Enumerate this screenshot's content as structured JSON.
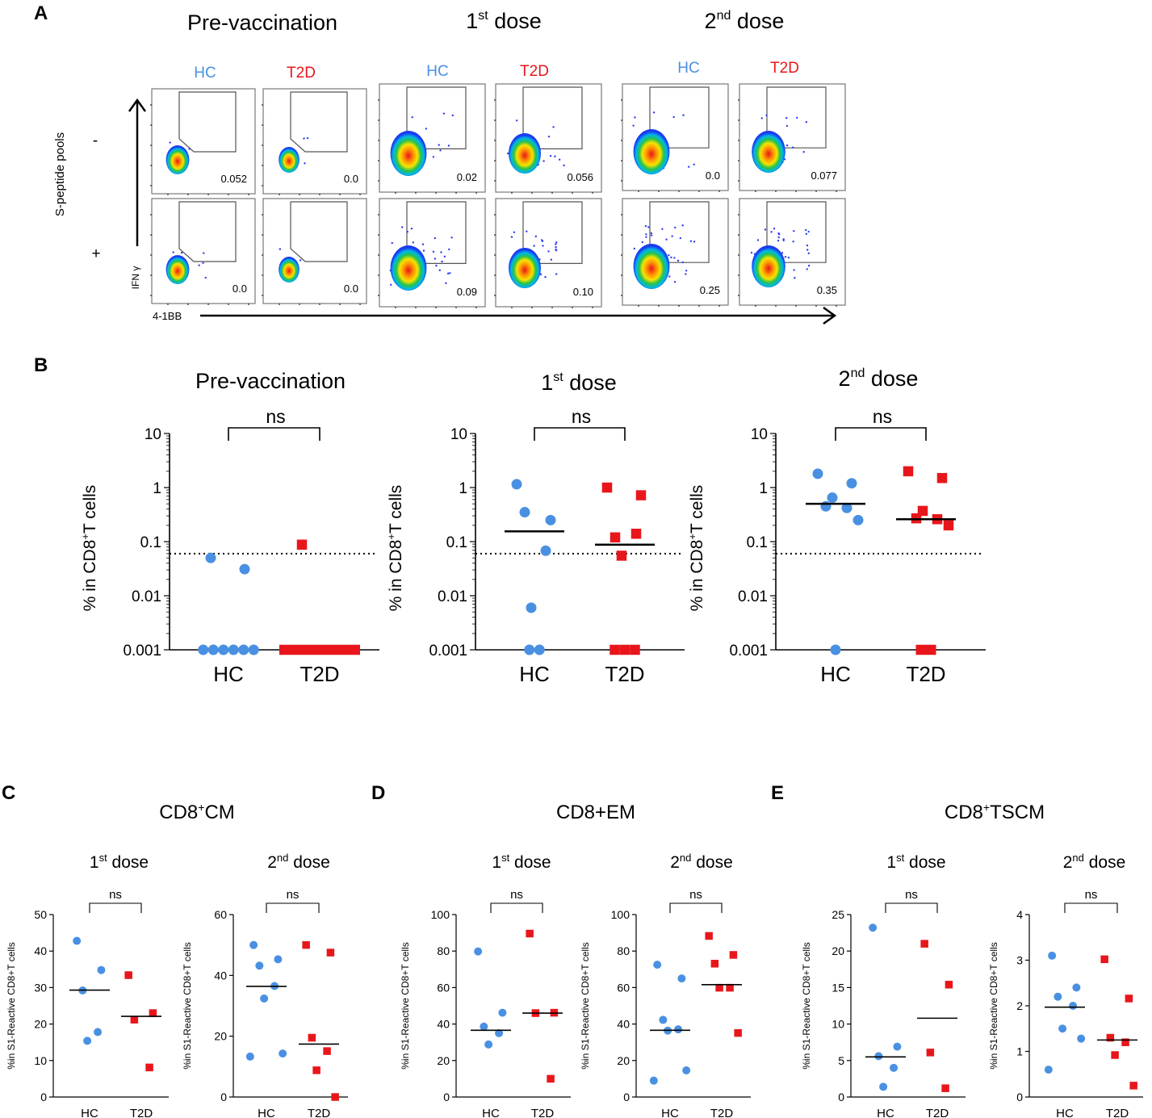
{
  "panel_letters": {
    "A": "A",
    "B": "B",
    "C": "C",
    "D": "D",
    "E": "E"
  },
  "colors": {
    "hc": "#4a90e2",
    "t2d": "#e8161b",
    "axis": "#000000",
    "gate": "#555555"
  },
  "panelA": {
    "titles": {
      "pre": "Pre-vaccination",
      "d1_num": "1",
      "d1_sup": "st",
      "d1_rest": " dose",
      "d2_num": "2",
      "d2_sup": "nd",
      "d2_rest": " dose"
    },
    "group_labels": {
      "hc": "HC",
      "t2d": "T2D"
    },
    "row_labels": {
      "minus": "-",
      "plus": "+"
    },
    "ylabel": "S-peptide pools",
    "ifn_label": "IFN γ",
    "x_axis_label": "4-1BB",
    "gate_values": {
      "pre_hc_minus": "0.052",
      "pre_t2d_minus": "0.0",
      "d1_hc_minus": "0.02",
      "d1_t2d_minus": "0.056",
      "d2_hc_minus": "0.0",
      "d2_t2d_minus": "0.077",
      "pre_hc_plus": "0.0",
      "pre_t2d_plus": "0.0",
      "d1_hc_plus": "0.09",
      "d1_t2d_plus": "0.10",
      "d2_hc_plus": "0.25",
      "d2_t2d_plus": "0.35"
    }
  },
  "chart_data": [
    {
      "id": "B1",
      "type": "scatter",
      "title": "Pre-vaccination",
      "yscale": "log",
      "ylim": [
        0.001,
        10
      ],
      "yticks": [
        "0.001",
        "0.01",
        "0.1",
        "1",
        "10"
      ],
      "ylabel": "% in CD8+T cells",
      "categories": [
        "HC",
        "T2D"
      ],
      "threshold": 0.06,
      "significance": "ns",
      "series": [
        {
          "name": "HC",
          "values": [
            0.05,
            0.031,
            0.001,
            0.001,
            0.001,
            0.001,
            0.001,
            0.001
          ],
          "median": null
        },
        {
          "name": "T2D",
          "values": [
            0.088,
            0.001,
            0.001,
            0.001,
            0.001,
            0.001,
            0.001,
            0.001,
            0.001
          ],
          "median": null
        }
      ]
    },
    {
      "id": "B2",
      "type": "scatter",
      "title": "1st dose",
      "yscale": "log",
      "ylim": [
        0.001,
        10
      ],
      "yticks": [
        "0.001",
        "0.01",
        "0.1",
        "1",
        "10"
      ],
      "ylabel": "% in CD8+T cells",
      "categories": [
        "HC",
        "T2D"
      ],
      "threshold": 0.06,
      "significance": "ns",
      "series": [
        {
          "name": "HC",
          "values": [
            1.15,
            0.25,
            0.35,
            0.068,
            0.006,
            0.001,
            0.001
          ],
          "median": 0.155
        },
        {
          "name": "T2D",
          "values": [
            1.0,
            0.72,
            0.12,
            0.14,
            0.055,
            0.001,
            0.001,
            0.001
          ],
          "median": 0.088
        }
      ]
    },
    {
      "id": "B3",
      "type": "scatter",
      "title": "2nd dose",
      "yscale": "log",
      "ylim": [
        0.001,
        10
      ],
      "yticks": [
        "0.001",
        "0.01",
        "0.1",
        "1",
        "10"
      ],
      "ylabel": "% in CD8+T cells",
      "categories": [
        "HC",
        "T2D"
      ],
      "threshold": 0.06,
      "significance": "ns",
      "series": [
        {
          "name": "HC",
          "values": [
            1.8,
            1.2,
            0.45,
            0.42,
            0.65,
            0.25,
            0.001
          ],
          "median": 0.5
        },
        {
          "name": "T2D",
          "values": [
            2.0,
            1.5,
            0.27,
            0.26,
            0.37,
            0.2,
            0.001,
            0.001
          ],
          "median": 0.26
        }
      ]
    },
    {
      "id": "C1",
      "type": "scatter",
      "title": "1st dose",
      "ylim": [
        0,
        50
      ],
      "yticks": [
        0,
        10,
        20,
        30,
        40,
        50
      ],
      "ylabel": "%in S1-Reactive CD8+T cells",
      "categories": [
        "HC",
        "T2D"
      ],
      "significance": "ns",
      "series": [
        {
          "name": "HC",
          "values": [
            42.8,
            34.8,
            29.2,
            17.8,
            15.4
          ],
          "median": 29.3
        },
        {
          "name": "T2D",
          "values": [
            33.4,
            23,
            21.2,
            8.1
          ],
          "median": 22.1
        }
      ]
    },
    {
      "id": "C2",
      "type": "scatter",
      "title": "2nd dose",
      "ylim": [
        0,
        60
      ],
      "yticks": [
        0,
        20,
        40,
        60
      ],
      "ylabel": "%in S1-Reactive CD8+T cells",
      "categories": [
        "HC",
        "T2D"
      ],
      "significance": "ns",
      "series": [
        {
          "name": "HC",
          "values": [
            50,
            45.3,
            43.2,
            36.5,
            32.4,
            14.3,
            13.3
          ],
          "median": 36.4
        },
        {
          "name": "T2D",
          "values": [
            50,
            47.5,
            19.5,
            15.1,
            8.8,
            0
          ],
          "median": 17.4
        }
      ]
    },
    {
      "id": "D1",
      "type": "scatter",
      "title": "1st dose",
      "ylim": [
        0,
        100
      ],
      "yticks": [
        0,
        20,
        40,
        60,
        80,
        100
      ],
      "ylabel": "%in S1-Reactive CD8+T cells",
      "categories": [
        "HC",
        "T2D"
      ],
      "significance": "ns",
      "series": [
        {
          "name": "HC",
          "values": [
            79.8,
            46.2,
            38.6,
            35,
            28.8
          ],
          "median": 36.6
        },
        {
          "name": "T2D",
          "values": [
            89.6,
            46.2,
            46,
            10
          ],
          "median": 46
        }
      ]
    },
    {
      "id": "D2",
      "type": "scatter",
      "title": "2nd dose",
      "ylim": [
        0,
        100
      ],
      "yticks": [
        0,
        20,
        40,
        60,
        80,
        100
      ],
      "ylabel": "%in S1-Reactive CD8+T cells",
      "categories": [
        "HC",
        "T2D"
      ],
      "significance": "ns",
      "series": [
        {
          "name": "HC",
          "values": [
            72.5,
            65,
            42.3,
            37.1,
            36.4,
            14.6,
            9
          ],
          "median": 36.6
        },
        {
          "name": "T2D",
          "values": [
            88.3,
            77.9,
            73.1,
            59.9,
            59.9,
            35.1
          ],
          "median": 61.6
        }
      ]
    },
    {
      "id": "E1",
      "type": "scatter",
      "title": "1st dose",
      "ylim": [
        0,
        25
      ],
      "yticks": [
        0,
        5,
        10,
        15,
        20,
        25
      ],
      "ylabel": "%in S1-Reactive CD8+T cells",
      "categories": [
        "HC",
        "T2D"
      ],
      "significance": "ns",
      "series": [
        {
          "name": "HC",
          "values": [
            23.2,
            6.9,
            5.6,
            4,
            1.4
          ],
          "median": 5.5
        },
        {
          "name": "T2D",
          "values": [
            21,
            15.4,
            6.1,
            1.2
          ],
          "median": 10.8
        }
      ]
    },
    {
      "id": "E2",
      "type": "scatter",
      "title": "2nd dose",
      "ylim": [
        0,
        4
      ],
      "yticks": [
        0,
        1,
        2,
        3,
        4
      ],
      "ylabel": "%in S1-Reactive CD8+T cells",
      "categories": [
        "HC",
        "T2D"
      ],
      "significance": "ns",
      "series": [
        {
          "name": "HC",
          "values": [
            3.1,
            2.4,
            2.2,
            2,
            1.5,
            1.28,
            0.6
          ],
          "median": 1.97
        },
        {
          "name": "T2D",
          "values": [
            3.02,
            2.16,
            1.3,
            1.2,
            0.92,
            0.25
          ],
          "median": 1.25
        }
      ]
    }
  ],
  "panel_titles": {
    "C": {
      "pre": "CD8",
      "sup": "+",
      "post": "CM"
    },
    "D": {
      "pre": "CD8+EM",
      "sup": "",
      "post": ""
    },
    "E": {
      "pre": "CD8",
      "sup": "+",
      "post": "TSCM"
    }
  },
  "dose_titles": {
    "d1_num": "1",
    "d1_sup": "st",
    "d1_rest": " dose",
    "d2_num": "2",
    "d2_sup": "nd",
    "d2_rest": " dose"
  },
  "b_ylabel": {
    "pre": "% in CD8",
    "sup": "+",
    "post": "T cells"
  }
}
